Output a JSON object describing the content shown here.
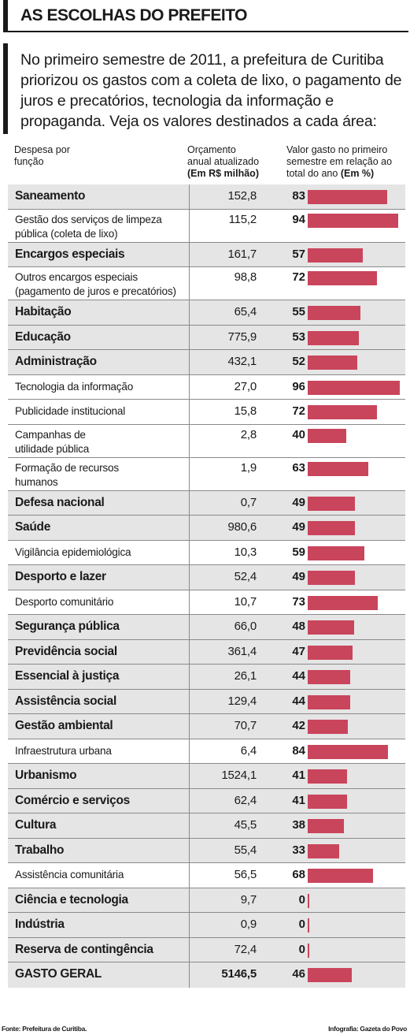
{
  "header": {
    "title": "AS ESCOLHAS DO PREFEITO",
    "intro": "No primeiro semestre de 2011, a prefeitura de Curitiba priorizou os gastos com a coleta de lixo, o pagamento de juros e precatórios, tecnologia da informação e propaganda. Veja os valores destinados a cada área:"
  },
  "columns": {
    "func": "Despesa por\nfunção",
    "orc": "Orçamento\nanual atualizado",
    "orc_unit": "(Em R$ milhão)",
    "val": "Valor gasto no primeiro\nsemestre em relação ao\ntotal do ano",
    "val_unit": "(Em %)"
  },
  "chart_data": {
    "type": "table",
    "bar_color": "#c9455c",
    "xlim": [
      0,
      100
    ],
    "rows": [
      {
        "label": "Saneamento",
        "budget": "152,8",
        "pct": 83,
        "level": "main"
      },
      {
        "label": "Gestão dos serviços de limpeza\npública (coleta de lixo)",
        "budget": "115,2",
        "pct": 94,
        "level": "sub"
      },
      {
        "label": "Encargos especiais",
        "budget": "161,7",
        "pct": 57,
        "level": "main"
      },
      {
        "label": "Outros encargos especiais\n(pagamento de juros e precatórios)",
        "budget": "98,8",
        "pct": 72,
        "level": "sub"
      },
      {
        "label": "Habitação",
        "budget": "65,4",
        "pct": 55,
        "level": "main"
      },
      {
        "label": "Educação",
        "budget": "775,9",
        "pct": 53,
        "level": "main"
      },
      {
        "label": "Administração",
        "budget": "432,1",
        "pct": 52,
        "level": "main"
      },
      {
        "label": "Tecnologia da informação",
        "budget": "27,0",
        "pct": 96,
        "level": "sub"
      },
      {
        "label": "Publicidade institucional",
        "budget": "15,8",
        "pct": 72,
        "level": "sub"
      },
      {
        "label": "Campanhas de\nutilidade pública",
        "budget": "2,8",
        "pct": 40,
        "level": "sub"
      },
      {
        "label": "Formação de recursos\nhumanos",
        "budget": "1,9",
        "pct": 63,
        "level": "sub"
      },
      {
        "label": "Defesa nacional",
        "budget": "0,7",
        "pct": 49,
        "level": "main"
      },
      {
        "label": "Saúde",
        "budget": "980,6",
        "pct": 49,
        "level": "main"
      },
      {
        "label": "Vigilância epidemiológica",
        "budget": "10,3",
        "pct": 59,
        "level": "sub"
      },
      {
        "label": "Desporto e lazer",
        "budget": "52,4",
        "pct": 49,
        "level": "main"
      },
      {
        "label": "Desporto comunitário",
        "budget": "10,7",
        "pct": 73,
        "level": "sub"
      },
      {
        "label": "Segurança pública",
        "budget": "66,0",
        "pct": 48,
        "level": "main"
      },
      {
        "label": "Previdência social",
        "budget": "361,4",
        "pct": 47,
        "level": "main"
      },
      {
        "label": "Essencial à justiça",
        "budget": "26,1",
        "pct": 44,
        "level": "main"
      },
      {
        "label": "Assistência social",
        "budget": "129,4",
        "pct": 44,
        "level": "main"
      },
      {
        "label": "Gestão ambiental",
        "budget": "70,7",
        "pct": 42,
        "level": "main"
      },
      {
        "label": "Infraestrutura urbana",
        "budget": "6,4",
        "pct": 84,
        "level": "sub"
      },
      {
        "label": "Urbanismo",
        "budget": "1524,1",
        "pct": 41,
        "level": "main"
      },
      {
        "label": "Comércio e serviços",
        "budget": "62,4",
        "pct": 41,
        "level": "main"
      },
      {
        "label": "Cultura",
        "budget": "45,5",
        "pct": 38,
        "level": "main"
      },
      {
        "label": "Trabalho",
        "budget": "55,4",
        "pct": 33,
        "level": "main"
      },
      {
        "label": "Assistência comunitária",
        "budget": "56,5",
        "pct": 68,
        "level": "sub"
      },
      {
        "label": "Ciência e tecnologia",
        "budget": "9,7",
        "pct": 0,
        "level": "main"
      },
      {
        "label": "Indústria",
        "budget": "0,9",
        "pct": 0,
        "level": "main"
      },
      {
        "label": "Reserva de contingência",
        "budget": "72,4",
        "pct": 0,
        "level": "main"
      },
      {
        "label": "GASTO GERAL",
        "budget": "5146,5",
        "pct": 46,
        "level": "total"
      }
    ]
  },
  "footer": {
    "source": "Fonte: Prefeitura de Curitiba.",
    "credit": "Infografia: Gazeta do Povo"
  }
}
